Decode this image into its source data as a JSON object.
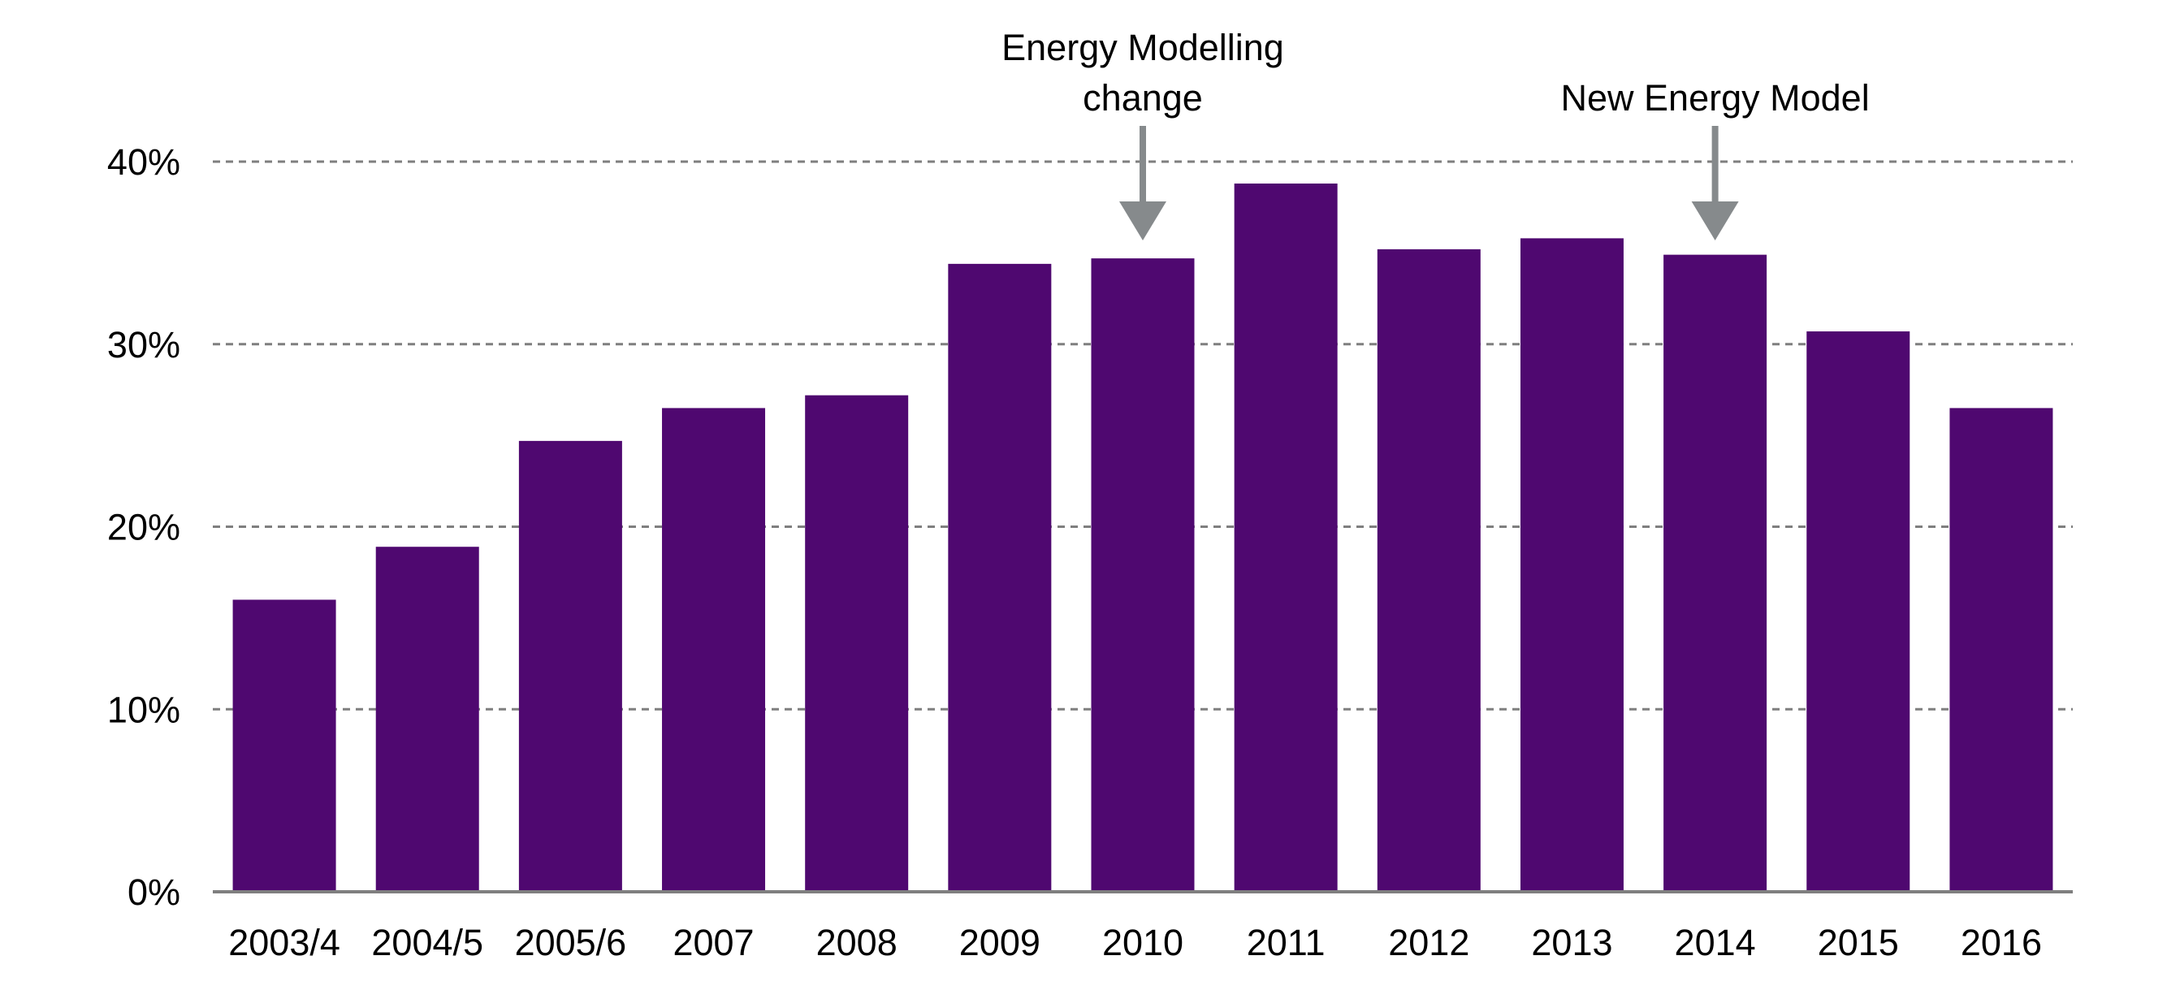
{
  "chart_data": {
    "type": "bar",
    "title": "",
    "xlabel": "",
    "ylabel": "",
    "categories": [
      "2003/4",
      "2004/5",
      "2005/6",
      "2007",
      "2008",
      "2009",
      "2010",
      "2011",
      "2012",
      "2013",
      "2014",
      "2015",
      "2016"
    ],
    "values": [
      16,
      18.9,
      24.7,
      26.5,
      27.2,
      34.4,
      34.7,
      38.8,
      35.2,
      35.8,
      34.9,
      30.7,
      26.5
    ],
    "value_format": "percent",
    "ylim": [
      0,
      40
    ],
    "yticks": [
      0,
      10,
      20,
      30,
      40
    ],
    "ytick_labels": [
      "0%",
      "10%",
      "20%",
      "30%",
      "40%"
    ],
    "grid": "horizontal dashed",
    "legend": "none",
    "colors": {
      "bar": "#4f0870",
      "grid": "#7f7f7f",
      "axis": "#7f7f7f",
      "arrow": "#868a8c",
      "text": "#000000"
    },
    "annotations": [
      {
        "category": "2010",
        "lines": [
          "Energy Modelling",
          "change"
        ],
        "mark": "down-arrow"
      },
      {
        "category": "2014",
        "lines": [
          "New Energy Model"
        ],
        "mark": "down-arrow"
      }
    ]
  }
}
